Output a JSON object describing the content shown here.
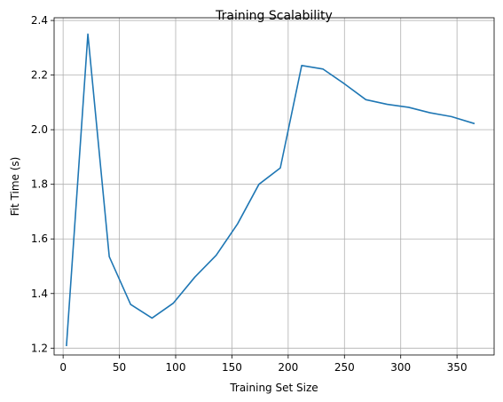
{
  "chart_data": {
    "type": "line",
    "title": "Training Scalability",
    "xlabel": "Training Set Size",
    "ylabel": "Fit Time (s)",
    "xlim": [
      -8,
      383
    ],
    "ylim": [
      1.175,
      2.41
    ],
    "xticks": [
      0,
      50,
      100,
      150,
      200,
      250,
      300,
      350
    ],
    "yticks": [
      1.2,
      1.4,
      1.6,
      1.8,
      2.0,
      2.2,
      2.4
    ],
    "ytick_labels": [
      "1.2",
      "1.4",
      "1.6",
      "1.8",
      "2.0",
      "2.2",
      "2.4"
    ],
    "grid": true,
    "series": [
      {
        "color": "#1f77b4",
        "x": [
          3,
          22,
          41,
          60,
          79,
          98,
          117,
          136,
          155,
          174,
          193,
          212,
          231,
          250,
          269,
          288,
          307,
          326,
          345,
          365
        ],
        "y": [
          1.21,
          2.35,
          1.535,
          1.36,
          1.31,
          1.365,
          1.46,
          1.54,
          1.655,
          1.8,
          1.86,
          2.235,
          2.222,
          2.168,
          2.11,
          2.093,
          2.082,
          2.062,
          2.048,
          2.023
        ]
      }
    ]
  }
}
